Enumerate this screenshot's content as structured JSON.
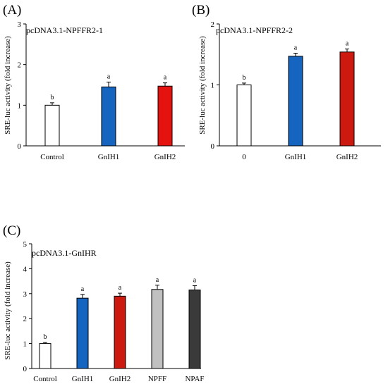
{
  "chart_data": [
    {
      "type": "bar",
      "panel": "(A)",
      "title": "pcDNA3.1-NPFFR2-1",
      "ylabel": "SRE-luc activity (fold increase)",
      "ylim": [
        0,
        3
      ],
      "yticks": [
        "0",
        "1",
        "2",
        "3"
      ],
      "categories": [
        "Control",
        "GnIH1",
        "GnIH2"
      ],
      "values": [
        1.0,
        1.45,
        1.47
      ],
      "errors": [
        0.06,
        0.12,
        0.08
      ],
      "letters": [
        "b",
        "a",
        "a"
      ],
      "colors": [
        "#ffffff",
        "#1565c0",
        "#e5130f"
      ]
    },
    {
      "type": "bar",
      "panel": "(B)",
      "title": "pcDNA3.1-NPFFR2-2",
      "ylabel": "SRE-luc activity (fold increase)",
      "ylim": [
        0,
        2
      ],
      "yticks": [
        "0",
        "1",
        "2"
      ],
      "categories": [
        "0",
        "GnIH1",
        "GnIH2"
      ],
      "values": [
        1.0,
        1.47,
        1.54
      ],
      "errors": [
        0.03,
        0.05,
        0.05
      ],
      "letters": [
        "b",
        "a",
        "a"
      ],
      "colors": [
        "#ffffff",
        "#1565c0",
        "#cc1a10"
      ]
    },
    {
      "type": "bar",
      "panel": "(C)",
      "title": "pcDNA3.1-GnIHR",
      "ylabel": "SRE-luc activity (fold increase)",
      "ylim": [
        0,
        5
      ],
      "yticks": [
        "0",
        "1",
        "2",
        "3",
        "4",
        "5"
      ],
      "categories": [
        "Control",
        "GnIH1",
        "GnIH2",
        "NPFF",
        "NPAF"
      ],
      "values": [
        1.0,
        2.82,
        2.9,
        3.17,
        3.15
      ],
      "errors": [
        0.04,
        0.15,
        0.12,
        0.17,
        0.17
      ],
      "letters": [
        "b",
        "a",
        "a",
        "a",
        "a"
      ],
      "colors": [
        "#ffffff",
        "#1565c0",
        "#cc1a10",
        "#c0c0c0",
        "#3a3a3a"
      ]
    }
  ]
}
